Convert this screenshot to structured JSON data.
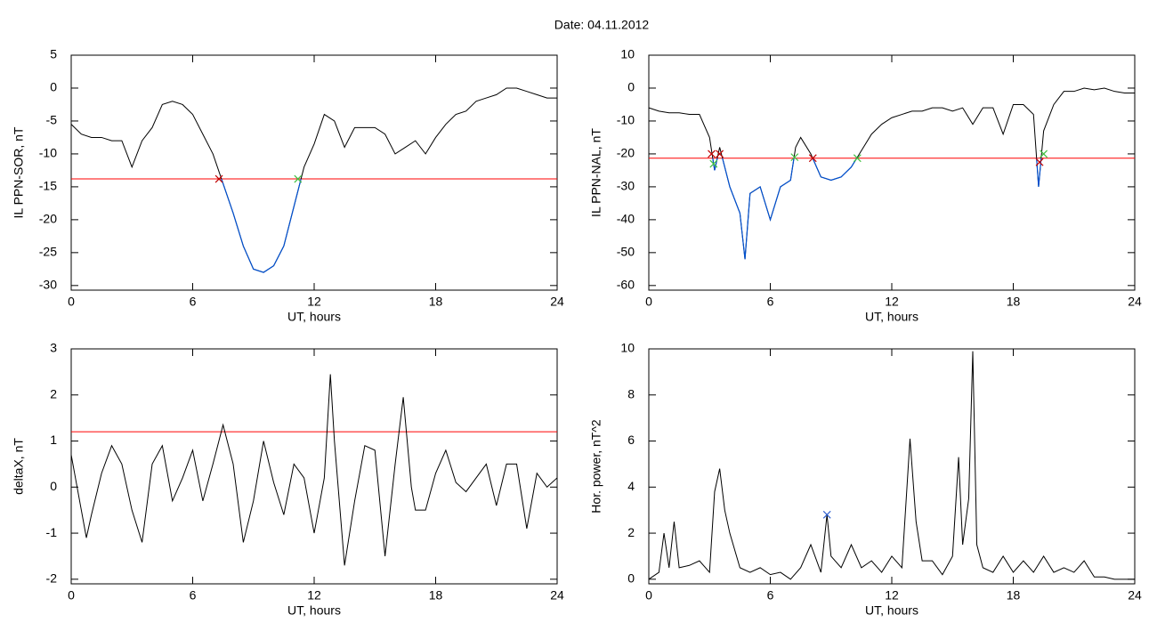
{
  "title": "Date:  04.11.2012",
  "chart_data": [
    {
      "type": "line",
      "ylabel": "IL PPN-SOR, nT",
      "xlabel": "UT, hours",
      "xlim": [
        0,
        24
      ],
      "xticks": [
        0,
        6,
        12,
        18,
        24
      ],
      "ylim": [
        -30.7,
        5
      ],
      "yticks": [
        5,
        0,
        -5,
        -10,
        -15,
        -20,
        -25,
        -30
      ],
      "hline": {
        "value": -13.8,
        "color": "#ff0000"
      },
      "below_color": "#0050d0",
      "series": [
        {
          "color": "#000000",
          "x": [
            0,
            0.5,
            1,
            1.5,
            2,
            2.5,
            3,
            3.5,
            4,
            4.5,
            5,
            5.5,
            6,
            6.5,
            7,
            7.5,
            8,
            8.5,
            9,
            9.5,
            10,
            10.5,
            11,
            11.5,
            12,
            12.5,
            13,
            13.5,
            14,
            14.5,
            15,
            15.5,
            16,
            16.5,
            17,
            17.5,
            18,
            18.5,
            19,
            19.5,
            20,
            20.5,
            21,
            21.5,
            22,
            22.5,
            23,
            23.5,
            24
          ],
          "values": [
            -5.5,
            -7,
            -7.5,
            -7.5,
            -8,
            -8,
            -12,
            -8,
            -6,
            -2.5,
            -2,
            -2.5,
            -4,
            -7,
            -10,
            -14.5,
            -19,
            -24,
            -27.5,
            -28,
            -27,
            -24,
            -18,
            -12,
            -8.5,
            -4,
            -5,
            -9,
            -6,
            -6,
            -6,
            -7,
            -10,
            -9,
            -8,
            -10,
            -7.5,
            -5.5,
            -4,
            -3.5,
            -2,
            -1.5,
            -1,
            0,
            0,
            -0.5,
            -1,
            -1.5,
            -1.5
          ]
        }
      ],
      "markers": [
        {
          "x": 7.3,
          "y": -13.8,
          "color": "#c00000"
        },
        {
          "x": 11.2,
          "y": -13.8,
          "color": "#40c040"
        }
      ]
    },
    {
      "type": "line",
      "ylabel": "IL PPN-NAL, nT",
      "xlabel": "UT, hours",
      "xlim": [
        0,
        24
      ],
      "xticks": [
        0,
        6,
        12,
        18,
        24
      ],
      "ylim": [
        -61.4,
        10
      ],
      "yticks": [
        10,
        0,
        -10,
        -20,
        -30,
        -40,
        -50,
        -60
      ],
      "hline": {
        "value": -21.3,
        "color": "#ff0000"
      },
      "below_color": "#0050d0",
      "series": [
        {
          "color": "#000000",
          "x": [
            0,
            0.5,
            1,
            1.5,
            2,
            2.5,
            3,
            3.25,
            3.5,
            4,
            4.5,
            4.75,
            5,
            5.5,
            6,
            6.5,
            7,
            7.25,
            7.5,
            8,
            8.5,
            9,
            9.5,
            10,
            10.5,
            11,
            11.5,
            12,
            12.5,
            13,
            13.5,
            14,
            14.5,
            15,
            15.5,
            16,
            16.5,
            17,
            17.5,
            18,
            18.5,
            19,
            19.25,
            19.5,
            20,
            20.5,
            21,
            21.5,
            22,
            22.5,
            23,
            23.5,
            24
          ],
          "values": [
            -6,
            -7,
            -7.5,
            -7.5,
            -8,
            -8,
            -15,
            -25,
            -18,
            -30,
            -38,
            -52,
            -32,
            -30,
            -40,
            -30,
            -28,
            -18,
            -15,
            -20,
            -27,
            -28,
            -27,
            -24,
            -19,
            -14,
            -11,
            -9,
            -8,
            -7,
            -7,
            -6,
            -6,
            -7,
            -6,
            -11,
            -6,
            -6,
            -14,
            -5,
            -5,
            -8,
            -30,
            -13,
            -5,
            -1,
            -1,
            0,
            -0.5,
            0,
            -1,
            -1.5,
            -1.5
          ]
        }
      ],
      "markers": [
        {
          "x": 3.1,
          "y": -20,
          "color": "#c00000"
        },
        {
          "x": 3.5,
          "y": -20,
          "color": "#c00000"
        },
        {
          "x": 8.1,
          "y": -21.3,
          "color": "#c00000"
        },
        {
          "x": 19.3,
          "y": -22.5,
          "color": "#c00000"
        },
        {
          "x": 3.2,
          "y": -23,
          "color": "#40c040"
        },
        {
          "x": 7.2,
          "y": -21,
          "color": "#40c040"
        },
        {
          "x": 10.3,
          "y": -21.3,
          "color": "#40c040"
        },
        {
          "x": 19.5,
          "y": -20,
          "color": "#40c040"
        }
      ]
    },
    {
      "type": "line",
      "ylabel": "deltaX, nT",
      "xlabel": "UT, hours",
      "xlim": [
        0,
        24
      ],
      "xticks": [
        0,
        6,
        12,
        18,
        24
      ],
      "ylim": [
        -2.1,
        3
      ],
      "yticks": [
        3,
        2,
        1,
        0,
        -1,
        -2
      ],
      "hline": {
        "value": 1.2,
        "color": "#ff0000"
      },
      "series": [
        {
          "color": "#000000",
          "x": [
            0,
            0.5,
            0.75,
            1,
            1.5,
            2,
            2.5,
            3,
            3.5,
            4,
            4.5,
            5,
            5.5,
            6,
            6.5,
            7,
            7.5,
            8,
            8.5,
            9,
            9.5,
            10,
            10.5,
            11,
            11.5,
            12,
            12.5,
            12.8,
            13,
            13.5,
            14,
            14.5,
            15,
            15.5,
            16,
            16.4,
            16.8,
            17,
            17.5,
            18,
            18.5,
            19,
            19.5,
            20,
            20.5,
            21,
            21.5,
            22,
            22.5,
            23,
            23.5,
            24
          ],
          "values": [
            0.7,
            -0.5,
            -1.1,
            -0.6,
            0.3,
            0.9,
            0.5,
            -0.5,
            -1.2,
            0.5,
            0.9,
            -0.3,
            0.2,
            0.8,
            -0.3,
            0.5,
            1.35,
            0.5,
            -1.2,
            -0.3,
            1.0,
            0.1,
            -0.6,
            0.5,
            0.2,
            -1.0,
            0.2,
            2.45,
            1.0,
            -1.7,
            -0.3,
            0.9,
            0.8,
            -1.5,
            0.5,
            1.95,
            0.0,
            -0.5,
            -0.5,
            0.3,
            0.8,
            0.1,
            -0.1,
            0.2,
            0.5,
            -0.4,
            0.5,
            0.5,
            -0.9,
            0.3,
            0.0,
            0.2
          ]
        }
      ],
      "markers": []
    },
    {
      "type": "line",
      "ylabel": "Hor. power, nT^2",
      "xlabel": "UT, hours",
      "xlim": [
        0,
        24
      ],
      "xticks": [
        0,
        6,
        12,
        18,
        24
      ],
      "ylim": [
        -0.2,
        10
      ],
      "yticks": [
        10,
        8,
        6,
        4,
        2,
        0
      ],
      "series": [
        {
          "color": "#000000",
          "x": [
            0,
            0.5,
            0.75,
            1,
            1.25,
            1.5,
            2,
            2.5,
            3,
            3.25,
            3.5,
            3.75,
            4,
            4.5,
            5,
            5.5,
            6,
            6.5,
            7,
            7.5,
            8,
            8.5,
            8.8,
            9,
            9.5,
            10,
            10.5,
            11,
            11.5,
            12,
            12.5,
            12.9,
            13.2,
            13.5,
            14,
            14.5,
            15,
            15.3,
            15.5,
            15.8,
            16,
            16.2,
            16.5,
            17,
            17.5,
            18,
            18.5,
            19,
            19.5,
            20,
            20.5,
            21,
            21.5,
            22,
            22.5,
            23,
            24
          ],
          "values": [
            0,
            0.3,
            2.0,
            0.5,
            2.5,
            0.5,
            0.6,
            0.8,
            0.3,
            3.8,
            4.8,
            3.0,
            2.0,
            0.5,
            0.3,
            0.5,
            0.2,
            0.3,
            0.0,
            0.5,
            1.5,
            0.3,
            2.8,
            1.0,
            0.5,
            1.5,
            0.5,
            0.8,
            0.3,
            1.0,
            0.5,
            6.1,
            2.5,
            0.8,
            0.8,
            0.2,
            1.0,
            5.3,
            1.5,
            3.5,
            9.9,
            1.5,
            0.5,
            0.3,
            1.0,
            0.3,
            0.8,
            0.3,
            1.0,
            0.3,
            0.5,
            0.3,
            0.8,
            0.1,
            0.1,
            0.0,
            0.0
          ]
        }
      ],
      "markers": [
        {
          "x": 8.8,
          "y": 2.8,
          "color": "#3060d0"
        }
      ]
    }
  ]
}
